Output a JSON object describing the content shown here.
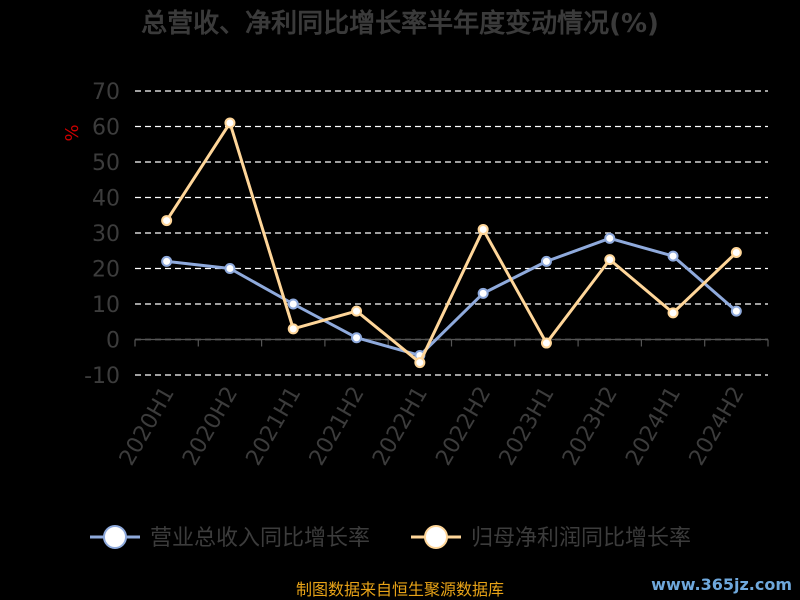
{
  "chart_data": {
    "type": "line",
    "title": "总营收、净利同比增长率半年度变动情况(%)",
    "ylabel": "%",
    "categories": [
      "2020H1",
      "2020H2",
      "2021H1",
      "2021H2",
      "2022H1",
      "2022H2",
      "2023H1",
      "2023H2",
      "2024H1",
      "2024H2"
    ],
    "ylim": [
      -10,
      70
    ],
    "yticks": [
      70,
      60,
      50,
      40,
      30,
      20,
      10,
      0,
      -10
    ],
    "grid": true,
    "legend_position": "bottom",
    "series": [
      {
        "name": "营业总收入同比增长率",
        "color": "#8faadc",
        "values": [
          22.0,
          20.0,
          10.0,
          0.5,
          -4.5,
          13.0,
          22.0,
          28.5,
          23.5,
          8.0
        ]
      },
      {
        "name": "归母净利润同比增长率",
        "color": "#ffd699",
        "values": [
          33.5,
          61.0,
          3.0,
          8.0,
          -6.5,
          31.0,
          -1.0,
          22.5,
          7.5,
          24.5
        ]
      }
    ]
  },
  "source_text": "制图数据来自恒生聚源数据库",
  "watermark_text": "www.365jz.com"
}
